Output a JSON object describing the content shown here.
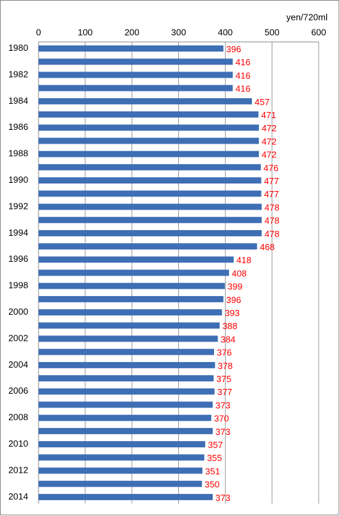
{
  "chart_data": {
    "type": "bar",
    "orientation": "horizontal",
    "x_label": "yen/720ml",
    "categories": [
      "1980",
      null,
      "1982",
      null,
      "1984",
      null,
      "1986",
      null,
      "1988",
      null,
      "1990",
      null,
      "1992",
      null,
      "1994",
      null,
      "1996",
      null,
      "1998",
      null,
      "2000",
      null,
      "2002",
      null,
      "2004",
      null,
      "2006",
      null,
      "2008",
      null,
      "2010",
      null,
      "2012",
      null,
      "2014"
    ],
    "values": [
      396,
      416,
      416,
      416,
      457,
      471,
      472,
      472,
      472,
      476,
      477,
      477,
      478,
      478,
      478,
      468,
      418,
      408,
      399,
      396,
      393,
      388,
      384,
      376,
      378,
      375,
      377,
      373,
      370,
      373,
      357,
      355,
      351,
      350,
      373
    ],
    "color": "#3e6eb4",
    "label_color": "#ff0000",
    "xlim": [
      0,
      600
    ],
    "xticks": [
      0,
      100,
      200,
      300,
      400,
      500,
      600
    ],
    "grid": true
  }
}
